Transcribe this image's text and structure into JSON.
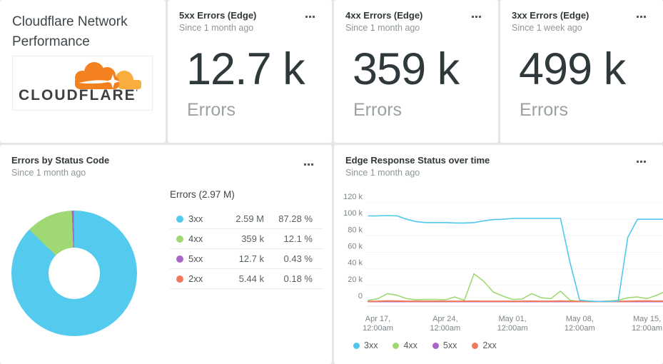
{
  "cards": {
    "header_card": {
      "title": "Cloudflare Network Performance",
      "logo_text": "CLOUDFLARE",
      "logo_mark": "'"
    },
    "stat_cards": [
      {
        "title": "5xx Errors (Edge)",
        "subtitle": "Since 1 month ago",
        "value": "12.7 k",
        "unit": "Errors"
      },
      {
        "title": "4xx Errors (Edge)",
        "subtitle": "Since 1 month ago",
        "value": "359 k",
        "unit": "Errors"
      },
      {
        "title": "3xx Errors (Edge)",
        "subtitle": "Since 1 week ago",
        "value": "499 k",
        "unit": "Errors"
      }
    ],
    "donut_card": {
      "title": "Errors by Status Code",
      "subtitle": "Since 1 month ago"
    },
    "time_card": {
      "title": "Edge Response Status over time",
      "subtitle": "Since 1 month ago"
    }
  },
  "chart_data": [
    {
      "type": "pie",
      "title": "Errors by Status Code",
      "total_label": "Errors (2.97 M)",
      "donut": true,
      "slices": [
        {
          "label": "3xx",
          "value": "2.59 M",
          "percent": 87.28,
          "percent_label": "87.28 %",
          "color": "#54CBEE"
        },
        {
          "label": "4xx",
          "value": "359 k",
          "percent": 12.1,
          "percent_label": "12.1 %",
          "color": "#A0D873"
        },
        {
          "label": "5xx",
          "value": "12.7 k",
          "percent": 0.43,
          "percent_label": "0.43 %",
          "color": "#A966C9"
        },
        {
          "label": "2xx",
          "value": "5.44 k",
          "percent": 0.18,
          "percent_label": "0.18 %",
          "color": "#F0795C"
        }
      ]
    },
    {
      "type": "line",
      "title": "Edge Response Status over time",
      "x_start_date": "Apr 16",
      "x_unit": "1 day per point",
      "y_unit": "k (thousands of responses)",
      "ylim": [
        0,
        120
      ],
      "grid": "dotted horizontal",
      "legend_position": "bottom-left",
      "yticks": [
        {
          "v": 0,
          "label": "0"
        },
        {
          "v": 20,
          "label": "20 k"
        },
        {
          "v": 40,
          "label": "40 k"
        },
        {
          "v": 60,
          "label": "60 k"
        },
        {
          "v": 80,
          "label": "80 k"
        },
        {
          "v": 100,
          "label": "100 k"
        },
        {
          "v": 120,
          "label": "120 k"
        }
      ],
      "xticks": [
        {
          "day": 1,
          "line1": "Apr 17,",
          "line2": "12:00am"
        },
        {
          "day": 8,
          "line1": "Apr 24,",
          "line2": "12:00am"
        },
        {
          "day": 15,
          "line1": "May 01,",
          "line2": "12:00am"
        },
        {
          "day": 22,
          "line1": "May 08,",
          "line2": "12:00am"
        },
        {
          "day": 29,
          "line1": "May 15,",
          "line2": "12:00am"
        }
      ],
      "series": [
        {
          "name": "5xx",
          "color": "#A966C9",
          "width": 1.5,
          "values": [
            0.3,
            0.3,
            0.3,
            0.3,
            0.3,
            0.3,
            0.3,
            0.3,
            0.3,
            0.3,
            0.3,
            0.3,
            0.3,
            0.3,
            0.3,
            0.3,
            0.3,
            0.3,
            0.3,
            0.3,
            0.3,
            0.3,
            0.2,
            0.2,
            0.2,
            0.2,
            0.3,
            0.3,
            0.3,
            0.3,
            0.3,
            0.3
          ]
        },
        {
          "name": "4xx",
          "color": "#A0D873",
          "width": 1.6,
          "values": [
            2,
            4,
            10,
            8,
            4,
            2.5,
            3,
            3,
            2.5,
            6,
            2,
            34,
            25,
            12,
            7,
            3,
            3.5,
            10,
            5,
            4,
            13,
            2,
            0.5,
            0.5,
            0.5,
            1,
            2,
            5,
            6,
            4,
            8,
            13
          ]
        },
        {
          "name": "2xx",
          "color": "#F0795C",
          "width": 2,
          "values": [
            0.7,
            0.8,
            1.2,
            1.0,
            0.8,
            0.8,
            0.8,
            0.9,
            0.8,
            0.8,
            0.8,
            0.9,
            0.8,
            0.8,
            0.8,
            0.8,
            0.8,
            0.9,
            0.8,
            0.8,
            1.0,
            0.8,
            0.5,
            0.4,
            0.4,
            0.5,
            0.7,
            0.8,
            1.0,
            1.2,
            0.9,
            0.9
          ]
        },
        {
          "name": "3xx",
          "color": "#4FC8EC",
          "width": 1.6,
          "values": [
            104,
            104,
            104.5,
            104,
            100,
            97,
            96,
            96,
            96,
            95.5,
            95.5,
            96,
            98,
            99.5,
            100,
            101,
            101,
            101,
            101,
            101,
            101,
            47,
            2,
            1,
            0.5,
            0.5,
            1,
            78,
            100,
            100,
            100,
            100
          ]
        }
      ],
      "legend": [
        "3xx",
        "4xx",
        "5xx",
        "2xx"
      ]
    }
  ]
}
